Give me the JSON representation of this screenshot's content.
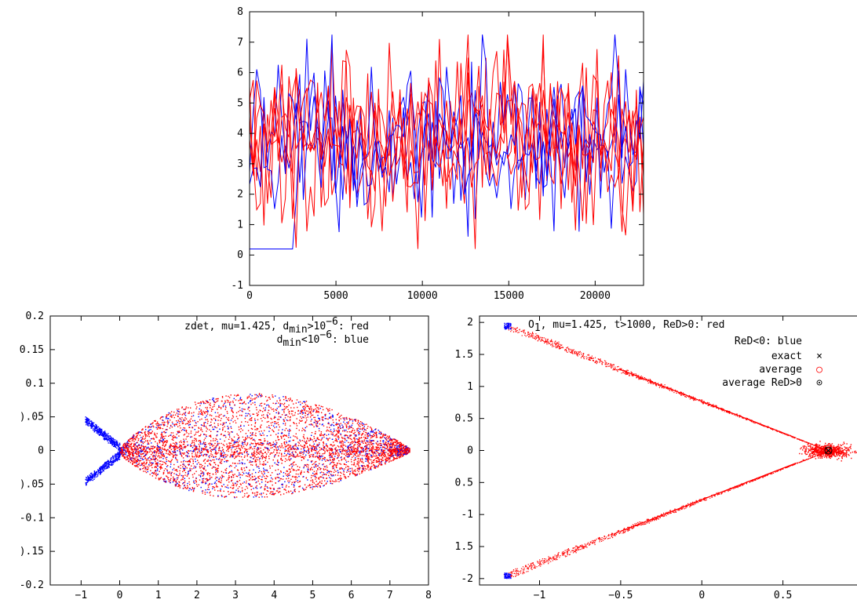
{
  "colors": {
    "red": "#ff0000",
    "blue": "#0000ff",
    "black": "#000000"
  },
  "chart_data": [
    {
      "type": "line",
      "title": "",
      "xlabel": "",
      "ylabel": "",
      "xlim": [
        0,
        22800
      ],
      "ylim": [
        -1,
        8
      ],
      "x_ticks": [
        "0",
        "5000",
        "10000",
        "15000",
        "20000"
      ],
      "y_ticks": [
        "-1",
        "0",
        "1",
        "2",
        "3",
        "4",
        "5",
        "6",
        "7",
        "8"
      ],
      "series": [
        {
          "color": "red",
          "description_values": {
            "x_range": [
              0,
              22800
            ],
            "y_range": [
              0.2,
              7.2
            ],
            "typical": [
              1.5,
              6.5
            ]
          }
        },
        {
          "color": "blue",
          "description_values": {
            "x_range": [
              0,
              22800
            ],
            "y_range": [
              -0.7,
              7.3
            ],
            "initial_low": [
              [
                0,
                -0.3
              ],
              [
                2500,
                -0.3
              ]
            ]
          }
        }
      ]
    },
    {
      "type": "scatter",
      "annotation": {
        "line1_prefix": "zdet, mu=1.425, d",
        "line1_sub": "min",
        "line1_mid": ">10",
        "line1_sup": "−6",
        "line1_suffix": ": red",
        "line2_prefix": "d",
        "line2_sub": "min",
        "line2_mid": "<10",
        "line2_sup": "−6",
        "line2_suffix": ": blue"
      },
      "xlim": [
        -1.8,
        8
      ],
      "ylim": [
        -0.2,
        0.2
      ],
      "x_ticks": [
        "−1",
        "0",
        "1",
        "2",
        "3",
        "4",
        "5",
        "6",
        "7",
        "8"
      ],
      "y_ticks": [
        "-0.2",
        ").15",
        "-0.1",
        ").05",
        "0",
        ").05",
        "0.1",
        "0.15",
        "0.2"
      ],
      "series": [
        {
          "color": "red",
          "shape": "ellipse cloud",
          "x_range": [
            0,
            7.5
          ],
          "y_range": [
            -0.07,
            0.12
          ]
        },
        {
          "color": "blue",
          "shape": "wing",
          "x_range": [
            -0.9,
            0
          ],
          "y_range": [
            -0.04,
            0.04
          ]
        }
      ]
    },
    {
      "type": "scatter",
      "annotation": {
        "line1_prefix": "O",
        "line1_sub": "1",
        "line1_suffix": ", mu=1.425, t>1000, ReD>0: red",
        "line2": "ReD<0: blue"
      },
      "legend": [
        {
          "label": "exact",
          "marker": "×",
          "color": "black"
        },
        {
          "label": "average",
          "marker": "○",
          "color": "red"
        },
        {
          "label": "average ReD>0",
          "marker": "⊙",
          "color": "black"
        }
      ],
      "xlim": [
        -1.37,
        1.0
      ],
      "ylim": [
        -2.1,
        2.1
      ],
      "x_ticks": [
        "−1",
        "−0.5",
        "0",
        "0.5",
        "1"
      ],
      "y_ticks": [
        "-2",
        "1.5",
        "-1",
        "0.5",
        "0",
        "0.5",
        "1",
        "1.5",
        "2"
      ],
      "points": {
        "exact": [
          0.78,
          0.0
        ],
        "average": [
          0.78,
          0.0
        ],
        "average_red": [
          0.78,
          0.0
        ]
      },
      "branches": [
        {
          "from": [
            -1.2,
            1.95
          ],
          "to": [
            0.78,
            0.0
          ]
        },
        {
          "from": [
            -1.2,
            -1.95
          ],
          "to": [
            0.78,
            0.0
          ]
        }
      ]
    }
  ]
}
